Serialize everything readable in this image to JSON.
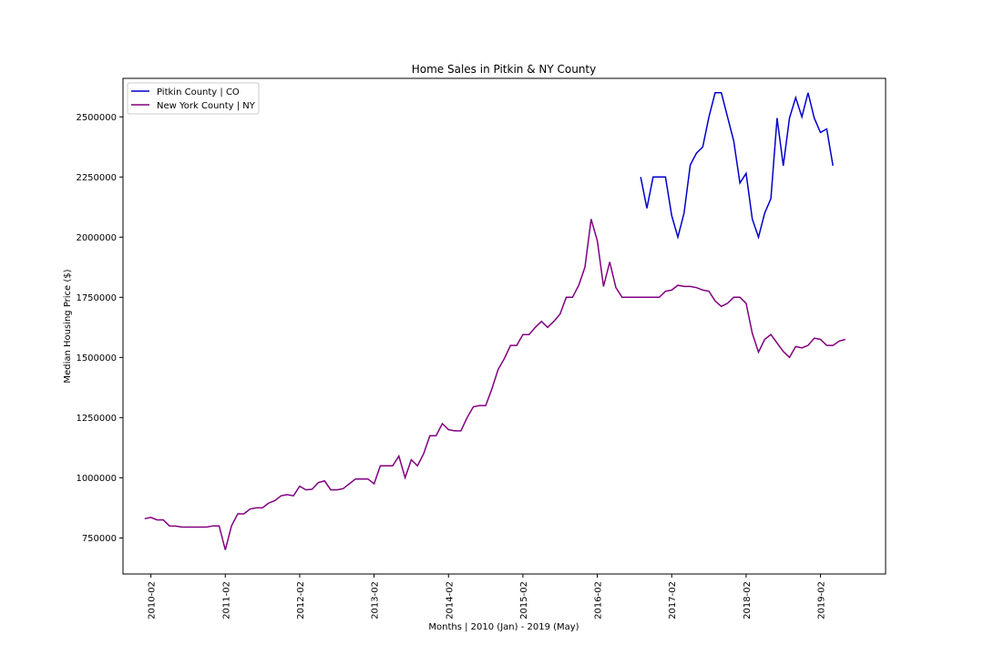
{
  "chart_data": {
    "type": "line",
    "title": "Home Sales in Pitkin & NY County",
    "xlabel": "Months | 2010 (Jan) - 2019 (May)",
    "ylabel": "Median Housing Price ($)",
    "x_tick_labels": [
      "2010-02",
      "2011-02",
      "2012-02",
      "2013-02",
      "2014-02",
      "2015-02",
      "2016-02",
      "2017-02",
      "2018-02",
      "2019-02"
    ],
    "y_tick_labels": [
      "750000",
      "1000000",
      "1250000",
      "1500000",
      "1750000",
      "2000000",
      "2250000",
      "2500000"
    ],
    "y_ticks": [
      750000,
      1000000,
      1250000,
      1500000,
      1750000,
      2000000,
      2250000,
      2500000
    ],
    "ylim": [
      600000,
      2660000
    ],
    "x_range_month_index": [
      -3.5,
      119.5
    ],
    "grid": false,
    "legend_position": "upper left",
    "series": [
      {
        "name": "Pitkin County | CO",
        "color": "#0000cc",
        "start_month": "2016-09",
        "values": [
          2250000,
          2120000,
          2250000,
          2250000,
          2250000,
          2090000,
          2000000,
          2100000,
          2300000,
          2350000,
          2375000,
          2500000,
          2600000,
          2600000,
          2500000,
          2400000,
          2225000,
          2265000,
          2075000,
          2000000,
          2100000,
          2160000,
          2495000,
          2297000,
          2495000,
          2580000,
          2500000,
          2600000,
          2495000,
          2435000,
          2450000,
          2297000
        ]
      },
      {
        "name": "New York County | NY",
        "color": "#800080",
        "start_month": "2010-01",
        "values": [
          830000,
          835000,
          825000,
          825000,
          800000,
          799000,
          795000,
          795000,
          795000,
          795000,
          795000,
          800000,
          800000,
          700000,
          800000,
          850000,
          850000,
          870000,
          875000,
          875000,
          895000,
          905000,
          925000,
          930000,
          925000,
          965000,
          950000,
          952000,
          980000,
          987000,
          950000,
          950000,
          955000,
          975000,
          995000,
          995000,
          995000,
          975000,
          1050000,
          1050000,
          1050000,
          1090000,
          1000000,
          1075000,
          1050000,
          1100000,
          1175000,
          1175000,
          1225000,
          1200000,
          1195000,
          1195000,
          1250000,
          1295000,
          1300000,
          1300000,
          1370000,
          1450000,
          1495000,
          1550000,
          1550000,
          1595000,
          1595000,
          1625000,
          1650000,
          1625000,
          1650000,
          1680000,
          1750000,
          1750000,
          1800000,
          1875000,
          2075000,
          1985000,
          1795000,
          1897000,
          1790000,
          1750000,
          1750000,
          1750000,
          1750000,
          1750000,
          1750000,
          1750000,
          1775000,
          1780000,
          1800000,
          1795000,
          1795000,
          1790000,
          1780000,
          1775000,
          1735000,
          1712000,
          1725000,
          1750000,
          1750000,
          1725000,
          1600000,
          1522000,
          1575000,
          1595000,
          1560000,
          1525000,
          1500000,
          1545000,
          1540000,
          1550000,
          1580000,
          1575000,
          1550000,
          1550000,
          1568000,
          1575000
        ]
      }
    ]
  }
}
